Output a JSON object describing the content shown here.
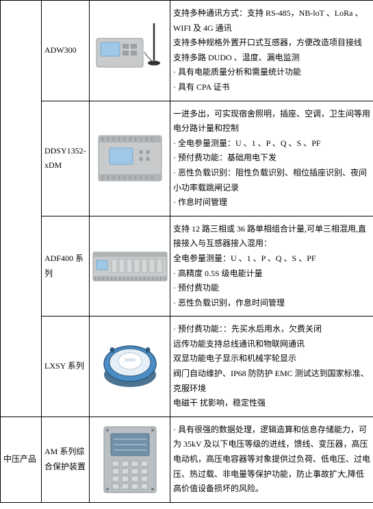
{
  "rows": [
    {
      "name": "ADW300",
      "description_lines": [
        "支持多种通讯方式：支持 RS-485，NB-loT 、LoRa 、WIFI 及 4G 通讯",
        "支持多种规格外置开口式互感器，方便改造项目接线",
        "支持多路 DUDO 、温度、漏电监测",
        "· 具有电能质量分析和需量统计功能",
        "· 具有 CPA 证书"
      ],
      "image_style": "adw300"
    },
    {
      "name": "DDSY1352-xDM",
      "description_lines": [
        "一进多出，可实现宿舍照明，插座、空调，卫生间等用电分路计量和控制",
        "· 全电参量测量：U 、1 、P 、Q 、S 、PF",
        "· 预付费功能：基础用电下发",
        "· 恶性负载识别：阻性负载识别、相位插座识别、夜间小功率载跳闸记录",
        "· 作息时间管理"
      ],
      "image_style": "ddsy"
    },
    {
      "name": "ADF400 系列",
      "description_lines": [
        "支持 12 路三相或 36 路单相组合计量,可单三相混用,直接接入与互感器接入混用：",
        "全电参量测量：U 、1 、P 、Q 、S 、PF",
        "· 高精度 0.5S 级电能计量",
        "· 预付费功能",
        "· 恶性负载识别，作息时间管理"
      ],
      "image_style": "adf400"
    },
    {
      "name": "LXSY 系列",
      "description_lines": [
        "· 预付费功能：：先买水后用水，欠费关闭",
        "远传功能支持总线通讯和物联网通讯",
        "双显功能电子显示和机械字轮显示",
        "阀门自动维护、IP68 防防护 EMC 测试达到国家标准、克服环境",
        "电磁干 扰影响，稳定性强"
      ],
      "image_style": "lxsy"
    },
    {
      "category": "中压产品",
      "name": "AM 系列综合保护装置",
      "description_lines": [
        "· 具有很强的数据处理，逻辑造算和信息存储能力，可为 35kV 及以下电压等级的进线，馈线、变压器，高压电动机，高压电容器等对象提供过负荷、低电压、过电压、热过载、非电量等保护功能，防止事故扩大,降低高价值设备损坏的风险。"
      ],
      "image_style": "am"
    }
  ],
  "colors": {
    "device_grey": "#c8cacb",
    "device_dark": "#5c6366",
    "lcd_blue": "#9fc7e8",
    "lxsy_blue": "#4a8cc4",
    "lxsy_dark": "#2d5a7f",
    "am_grey": "#b9bfc2",
    "am_screen": "#7090a8"
  }
}
